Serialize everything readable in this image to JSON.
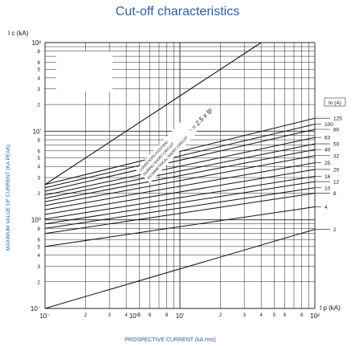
{
  "chart_data": {
    "type": "line",
    "title": "Cut-off  characteristics",
    "y_unit_label": "I c (kA)",
    "x_unit_label": "I p (kA)",
    "ylabel": "MAXIMUM VALUE OF CURRENT (KA PEAK)",
    "xlabel": "PROSPECTIVE CURRENT (kA rms)",
    "x_scale": "log",
    "y_scale": "log",
    "xlim": [
      1,
      100
    ],
    "ylim": [
      0.1,
      100
    ],
    "x_ticks": [
      "10⁻",
      "10⁰",
      "10'",
      "10²"
    ],
    "y_ticks": [
      "10²",
      "10'",
      "10⁰",
      "10⁻"
    ],
    "minor_tick_labels": [
      "2",
      "3",
      "4",
      "5",
      "6",
      "8"
    ],
    "grid": true,
    "legend_header": "In (A)",
    "asymptote_label": "Ic = 2.5 x Ip",
    "asymptote_text": [
      "CONDITIONS EXISTING",
      "DURING SHORT-CIRCUIT",
      "ASYMMETRICAL SHORT-CIRCUIT"
    ],
    "asymptote": {
      "name": "Ic = 2.5 x Ip",
      "x": [
        1,
        100
      ],
      "y": [
        2.5,
        250
      ]
    },
    "series": [
      {
        "name": "125",
        "x": [
          1,
          100
        ],
        "y": [
          2.5,
          14
        ]
      },
      {
        "name": "100",
        "x": [
          1,
          100
        ],
        "y": [
          2.3,
          12
        ]
      },
      {
        "name": "80",
        "x": [
          1,
          100
        ],
        "y": [
          2.1,
          10.5
        ]
      },
      {
        "name": "63",
        "x": [
          1,
          100
        ],
        "y": [
          1.9,
          8.5
        ]
      },
      {
        "name": "50",
        "x": [
          1,
          100
        ],
        "y": [
          1.75,
          7.2
        ]
      },
      {
        "name": "40",
        "x": [
          1,
          100
        ],
        "y": [
          1.6,
          6.2
        ]
      },
      {
        "name": "32",
        "x": [
          1,
          100
        ],
        "y": [
          1.45,
          5.3
        ]
      },
      {
        "name": "25",
        "x": [
          1,
          100
        ],
        "y": [
          1.3,
          4.4
        ]
      },
      {
        "name": "20",
        "x": [
          1,
          100
        ],
        "y": [
          1.15,
          3.7
        ]
      },
      {
        "name": "16",
        "x": [
          1,
          100
        ],
        "y": [
          1.02,
          3.1
        ]
      },
      {
        "name": "12",
        "x": [
          1,
          100
        ],
        "y": [
          0.9,
          2.7
        ]
      },
      {
        "name": "10",
        "x": [
          1,
          100
        ],
        "y": [
          0.8,
          2.3
        ]
      },
      {
        "name": "8",
        "x": [
          1,
          100
        ],
        "y": [
          0.7,
          2.0
        ]
      },
      {
        "name": "4",
        "x": [
          1,
          100
        ],
        "y": [
          0.5,
          1.4
        ]
      },
      {
        "name": "2",
        "x": [
          1,
          100
        ],
        "y": [
          0.1,
          0.78
        ]
      }
    ],
    "colors": {
      "title": "#2b5fa6",
      "axis_text": "#2b5fa6",
      "lines": "#111111"
    }
  }
}
